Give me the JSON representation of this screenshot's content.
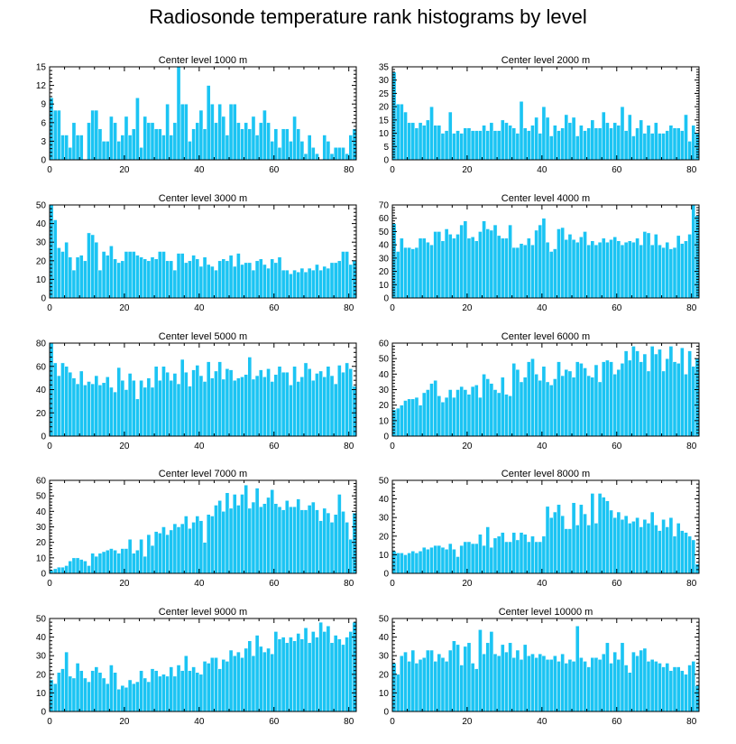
{
  "title": "Radiosonde temperature rank histograms by level",
  "colors": {
    "bar": "#1bc4f3",
    "bar_edge": "#ffffff",
    "axis": "#000000"
  },
  "chart_data": [
    {
      "type": "bar",
      "title": "Center level 1000 m",
      "xlim": [
        0,
        82
      ],
      "ylim": [
        0,
        15
      ],
      "xticks": [
        0,
        20,
        40,
        60,
        80
      ],
      "yticks": [
        0,
        3,
        6,
        9,
        12,
        15
      ],
      "values": [
        10,
        8,
        8,
        4,
        4,
        2,
        6,
        4,
        4,
        0,
        6,
        8,
        8,
        5,
        3,
        3,
        7,
        6,
        3,
        4,
        7,
        4,
        5,
        10,
        2,
        7,
        6,
        6,
        5,
        5,
        4,
        9,
        4,
        6,
        15,
        9,
        9,
        3,
        5,
        6,
        8,
        5,
        12,
        9,
        6,
        9,
        7,
        4,
        9,
        9,
        6,
        5,
        6,
        5,
        7,
        4,
        6,
        8,
        6,
        3,
        5,
        2,
        5,
        5,
        3,
        7,
        5,
        3,
        1,
        4,
        2,
        1,
        0,
        4,
        3,
        1,
        2,
        2,
        2,
        1,
        4,
        5
      ]
    },
    {
      "type": "bar",
      "title": "Center level 2000 m",
      "xlim": [
        0,
        82
      ],
      "ylim": [
        0,
        35
      ],
      "xticks": [
        0,
        20,
        40,
        60,
        80
      ],
      "yticks": [
        0,
        5,
        10,
        15,
        20,
        25,
        30,
        35
      ],
      "values": [
        33,
        21,
        21,
        18,
        14,
        14,
        12,
        14,
        13,
        15,
        20,
        13,
        13,
        10,
        11,
        18,
        10,
        11,
        10,
        12,
        12,
        11,
        11,
        11,
        13,
        11,
        14,
        11,
        11,
        15,
        14,
        13,
        12,
        10,
        22,
        12,
        11,
        13,
        16,
        10,
        20,
        16,
        9,
        13,
        11,
        12,
        17,
        14,
        16,
        9,
        13,
        11,
        12,
        15,
        12,
        12,
        18,
        14,
        12,
        14,
        13,
        20,
        11,
        17,
        9,
        12,
        15,
        10,
        13,
        10,
        14,
        10,
        10,
        11,
        13,
        12,
        12,
        11,
        17,
        7,
        13,
        10
      ]
    },
    {
      "type": "bar",
      "title": "Center level 3000 m",
      "xlim": [
        0,
        82
      ],
      "ylim": [
        0,
        50
      ],
      "xticks": [
        0,
        20,
        40,
        60,
        80
      ],
      "yticks": [
        0,
        10,
        20,
        30,
        40,
        50
      ],
      "values": [
        50,
        42,
        27,
        25,
        30,
        22,
        15,
        22,
        23,
        20,
        35,
        34,
        30,
        15,
        25,
        23,
        28,
        21,
        19,
        20,
        25,
        25,
        25,
        23,
        22,
        21,
        20,
        22,
        21,
        25,
        25,
        20,
        20,
        15,
        24,
        24,
        19,
        20,
        23,
        21,
        17,
        22,
        18,
        17,
        15,
        20,
        21,
        20,
        23,
        17,
        24,
        18,
        19,
        19,
        15,
        20,
        21,
        18,
        16,
        21,
        19,
        22,
        15,
        15,
        13,
        15,
        14,
        16,
        14,
        16,
        15,
        18,
        15,
        17,
        16,
        19,
        19,
        20,
        25,
        25,
        18,
        20
      ]
    },
    {
      "type": "bar",
      "title": "Center level 4000 m",
      "xlim": [
        0,
        82
      ],
      "ylim": [
        0,
        70
      ],
      "xticks": [
        0,
        20,
        40,
        60,
        80
      ],
      "yticks": [
        0,
        10,
        20,
        30,
        40,
        50,
        60,
        70
      ],
      "values": [
        56,
        35,
        45,
        38,
        38,
        37,
        38,
        45,
        45,
        42,
        40,
        50,
        50,
        43,
        52,
        48,
        45,
        48,
        55,
        58,
        45,
        46,
        43,
        50,
        58,
        52,
        51,
        55,
        47,
        45,
        45,
        55,
        38,
        38,
        41,
        40,
        45,
        40,
        51,
        55,
        60,
        42,
        35,
        37,
        52,
        53,
        44,
        48,
        44,
        42,
        46,
        50,
        40,
        43,
        40,
        42,
        45,
        42,
        44,
        46,
        43,
        40,
        42,
        43,
        42,
        45,
        40,
        50,
        49,
        40,
        48,
        40,
        38,
        42,
        37,
        38,
        47,
        41,
        43,
        48,
        70,
        62
      ]
    },
    {
      "type": "bar",
      "title": "Center level 5000 m",
      "xlim": [
        0,
        82
      ],
      "ylim": [
        0,
        80
      ],
      "xticks": [
        0,
        20,
        40,
        60,
        80
      ],
      "yticks": [
        0,
        20,
        40,
        60,
        80
      ],
      "values": [
        80,
        63,
        52,
        63,
        60,
        55,
        50,
        45,
        56,
        44,
        47,
        45,
        52,
        44,
        46,
        51,
        42,
        38,
        59,
        48,
        40,
        54,
        48,
        32,
        48,
        42,
        50,
        42,
        60,
        48,
        60,
        55,
        48,
        54,
        45,
        66,
        55,
        43,
        57,
        61,
        52,
        47,
        64,
        50,
        56,
        64,
        49,
        58,
        57,
        48,
        50,
        51,
        53,
        68,
        49,
        52,
        57,
        51,
        58,
        47,
        53,
        60,
        55,
        55,
        44,
        60,
        47,
        51,
        63,
        58,
        48,
        54,
        56,
        51,
        60,
        52,
        45,
        61,
        55,
        63,
        58,
        43
      ]
    },
    {
      "type": "bar",
      "title": "Center level 6000 m",
      "xlim": [
        0,
        82
      ],
      "ylim": [
        0,
        60
      ],
      "xticks": [
        0,
        20,
        40,
        60,
        80
      ],
      "yticks": [
        0,
        10,
        20,
        30,
        40,
        50,
        60
      ],
      "values": [
        17,
        18,
        20,
        23,
        24,
        24,
        25,
        20,
        28,
        30,
        34,
        36,
        26,
        22,
        25,
        30,
        25,
        30,
        32,
        30,
        27,
        32,
        33,
        25,
        40,
        37,
        34,
        30,
        28,
        38,
        27,
        26,
        47,
        43,
        35,
        38,
        48,
        50,
        40,
        36,
        45,
        35,
        33,
        37,
        48,
        39,
        43,
        42,
        38,
        48,
        47,
        44,
        39,
        38,
        46,
        35,
        48,
        49,
        48,
        40,
        43,
        47,
        55,
        49,
        58,
        55,
        48,
        53,
        42,
        58,
        53,
        56,
        42,
        50,
        58,
        48,
        47,
        57,
        40,
        55,
        45,
        50
      ]
    },
    {
      "type": "bar",
      "title": "Center level 7000 m",
      "xlim": [
        0,
        82
      ],
      "ylim": [
        0,
        60
      ],
      "xticks": [
        0,
        20,
        40,
        60,
        80
      ],
      "yticks": [
        0,
        10,
        20,
        30,
        40,
        50,
        60
      ],
      "values": [
        2,
        3,
        4,
        4,
        5,
        8,
        10,
        10,
        9,
        8,
        5,
        13,
        11,
        13,
        14,
        15,
        16,
        15,
        13,
        16,
        16,
        22,
        13,
        15,
        22,
        11,
        25,
        18,
        27,
        26,
        30,
        25,
        28,
        32,
        30,
        32,
        37,
        29,
        33,
        37,
        34,
        20,
        38,
        37,
        44,
        47,
        40,
        52,
        42,
        51,
        44,
        51,
        57,
        42,
        46,
        55,
        43,
        45,
        49,
        54,
        45,
        43,
        41,
        47,
        43,
        43,
        48,
        41,
        41,
        44,
        46,
        41,
        34,
        42,
        39,
        33,
        38,
        51,
        40,
        33,
        22,
        39
      ]
    },
    {
      "type": "bar",
      "title": "Center level 8000 m",
      "xlim": [
        0,
        82
      ],
      "ylim": [
        0,
        50
      ],
      "xticks": [
        0,
        20,
        40,
        60,
        80
      ],
      "yticks": [
        0,
        10,
        20,
        30,
        40,
        50
      ],
      "values": [
        12,
        11,
        11,
        10,
        11,
        12,
        11,
        12,
        14,
        13,
        14,
        15,
        15,
        14,
        13,
        16,
        13,
        9,
        15,
        17,
        17,
        16,
        16,
        21,
        15,
        25,
        14,
        19,
        20,
        22,
        17,
        17,
        22,
        18,
        22,
        21,
        17,
        20,
        17,
        17,
        20,
        36,
        30,
        33,
        37,
        31,
        24,
        24,
        38,
        26,
        37,
        32,
        26,
        43,
        27,
        43,
        41,
        39,
        34,
        30,
        33,
        29,
        31,
        27,
        28,
        30,
        25,
        29,
        27,
        33,
        26,
        23,
        29,
        25,
        30,
        20,
        27,
        23,
        22,
        20,
        18,
        5
      ]
    },
    {
      "type": "bar",
      "title": "Center level 9000 m",
      "xlim": [
        0,
        82
      ],
      "ylim": [
        0,
        50
      ],
      "xticks": [
        0,
        20,
        40,
        60,
        80
      ],
      "yticks": [
        0,
        10,
        20,
        30,
        40,
        50
      ],
      "values": [
        17,
        15,
        21,
        23,
        32,
        19,
        18,
        26,
        22,
        18,
        16,
        22,
        24,
        21,
        18,
        15,
        25,
        21,
        12,
        14,
        13,
        17,
        15,
        16,
        22,
        18,
        16,
        23,
        22,
        19,
        20,
        19,
        24,
        19,
        25,
        22,
        30,
        22,
        24,
        21,
        20,
        27,
        26,
        29,
        29,
        23,
        28,
        27,
        33,
        30,
        32,
        29,
        34,
        38,
        30,
        41,
        35,
        32,
        34,
        31,
        43,
        39,
        40,
        37,
        40,
        38,
        42,
        39,
        45,
        37,
        43,
        40,
        48,
        43,
        46,
        37,
        41,
        39,
        36,
        40,
        43,
        48
      ]
    },
    {
      "type": "bar",
      "title": "Center level 10000 m",
      "xlim": [
        0,
        82
      ],
      "ylim": [
        0,
        50
      ],
      "xticks": [
        0,
        20,
        40,
        60,
        80
      ],
      "yticks": [
        0,
        10,
        20,
        30,
        40,
        50
      ],
      "values": [
        26,
        20,
        30,
        32,
        27,
        33,
        26,
        28,
        29,
        33,
        33,
        27,
        31,
        29,
        27,
        33,
        38,
        36,
        25,
        35,
        37,
        26,
        23,
        44,
        31,
        37,
        43,
        31,
        30,
        36,
        32,
        37,
        29,
        33,
        28,
        36,
        30,
        31,
        29,
        31,
        30,
        28,
        28,
        30,
        27,
        31,
        26,
        28,
        27,
        46,
        29,
        27,
        24,
        29,
        29,
        28,
        31,
        37,
        26,
        32,
        28,
        37,
        25,
        21,
        32,
        30,
        33,
        34,
        27,
        28,
        27,
        26,
        24,
        26,
        22,
        24,
        24,
        22,
        20,
        25,
        27,
        14
      ]
    }
  ]
}
